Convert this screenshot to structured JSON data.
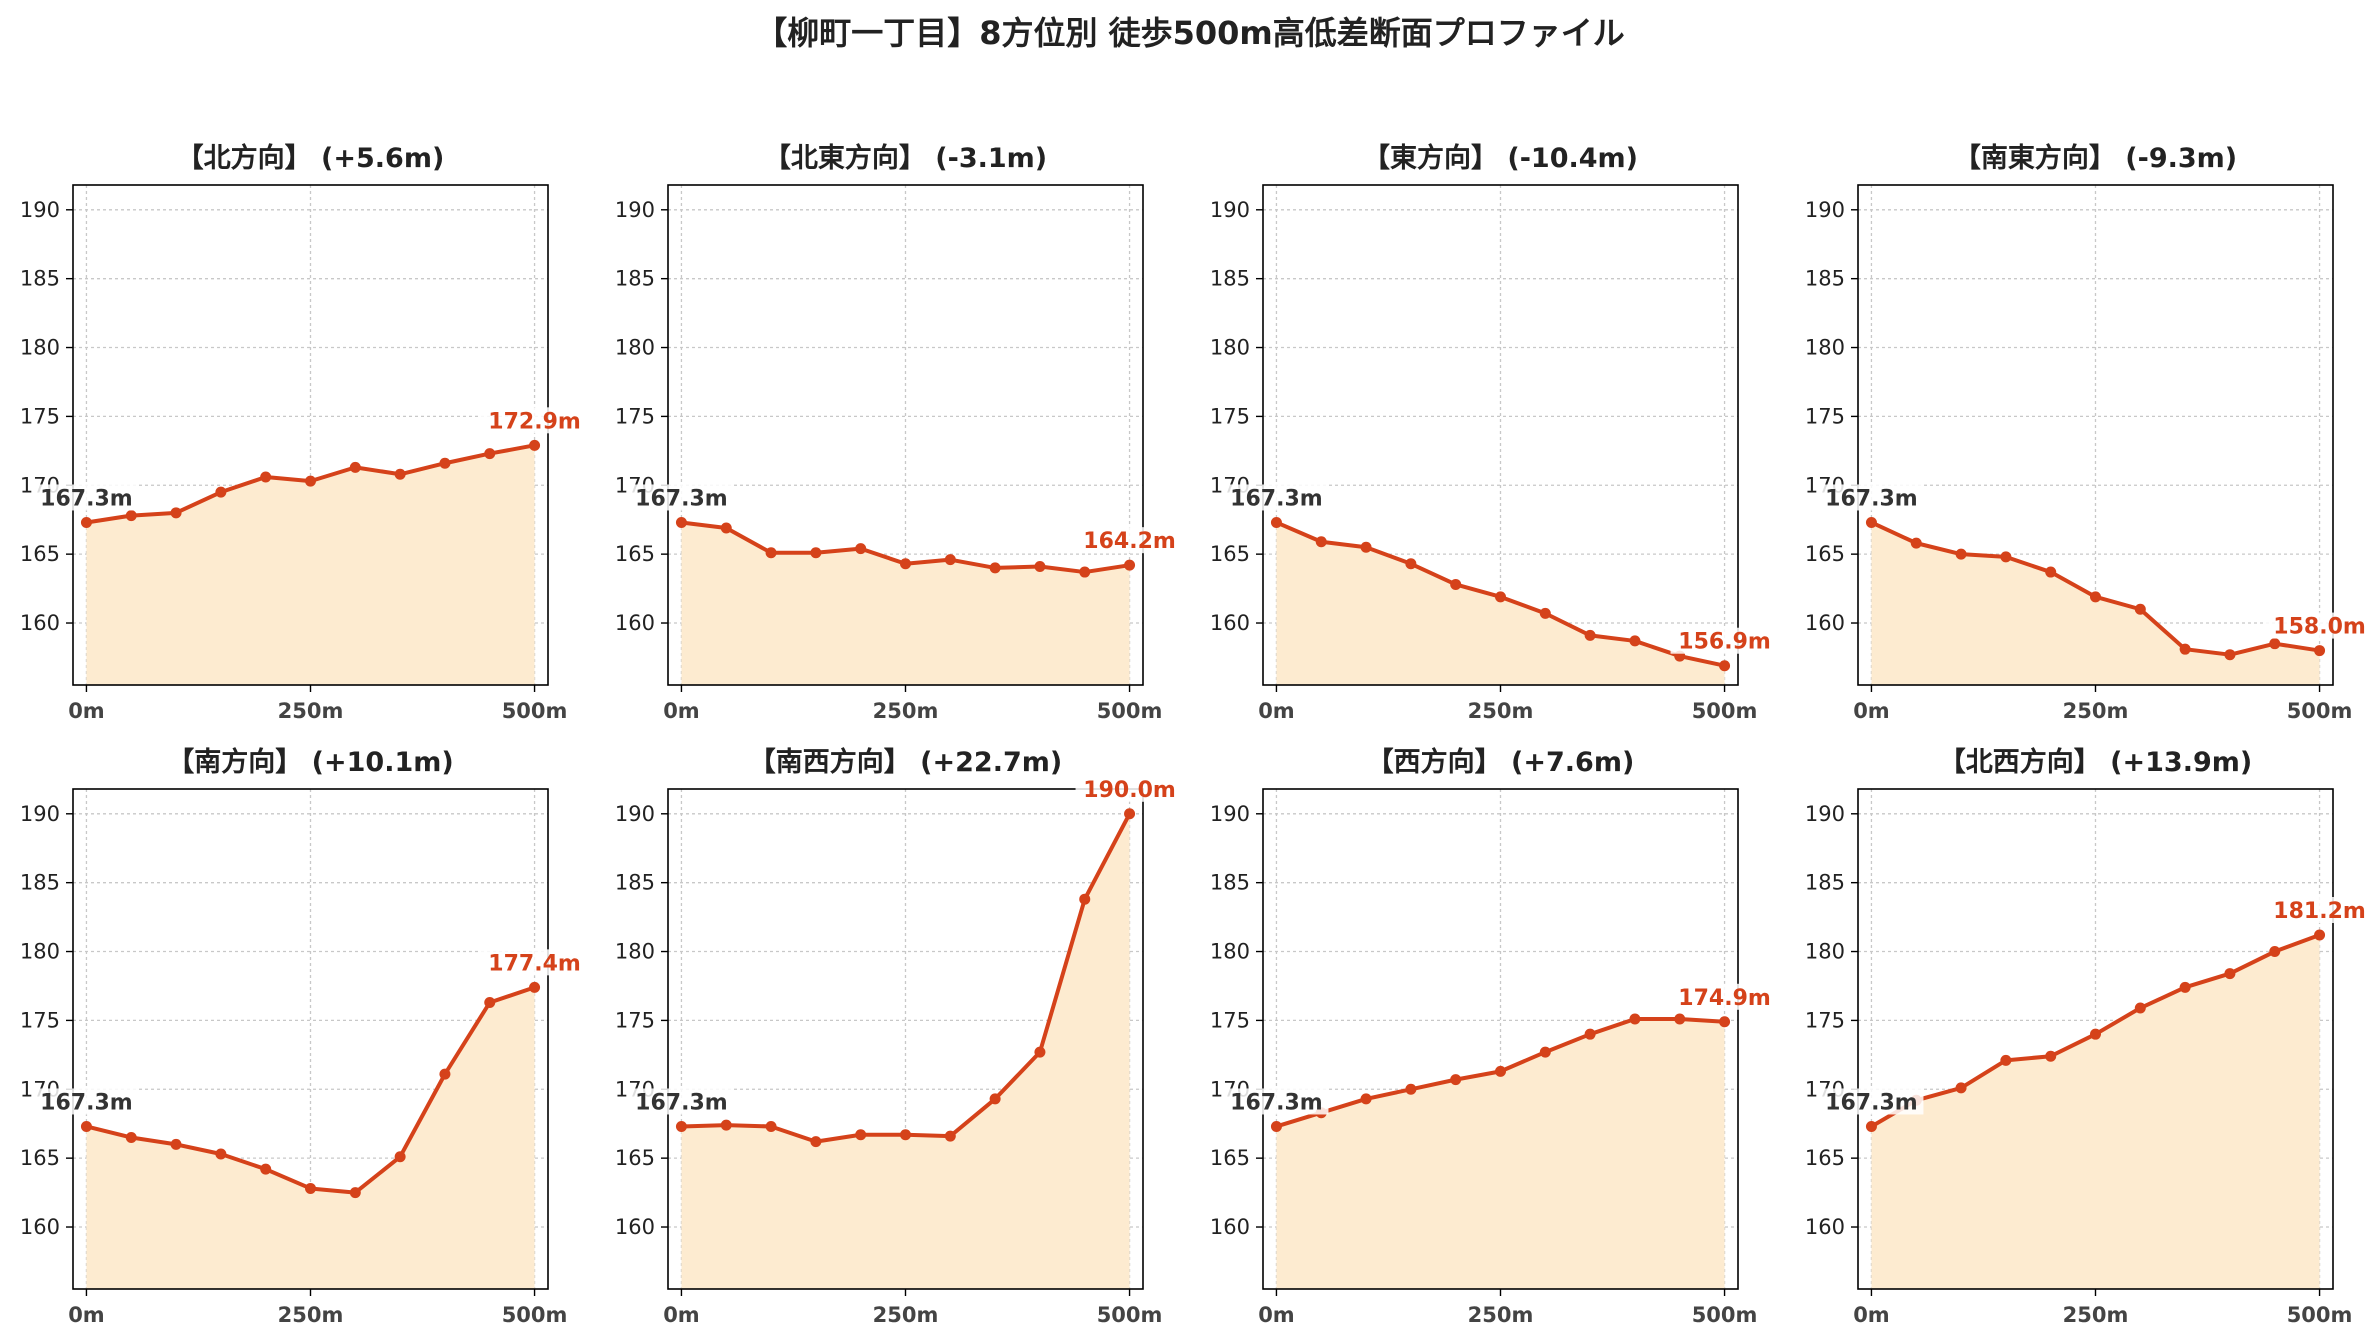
{
  "title": "【柳町一丁目】8方位別 徒歩500m高低差断面プロファイル",
  "colors": {
    "line": "#d5421a",
    "fill": "#fdebd0",
    "start_label": "#333333",
    "end_label": "#d5421a",
    "grid": "#c8c8c8",
    "axis": "#000000"
  },
  "chart_data": [
    {
      "type": "area",
      "title": "【北方向】 (+5.6m)",
      "x": [
        0,
        50,
        100,
        150,
        200,
        250,
        300,
        350,
        400,
        450,
        500
      ],
      "values": [
        167.3,
        167.8,
        168.0,
        169.5,
        170.6,
        170.3,
        171.3,
        170.8,
        171.6,
        172.3,
        172.9
      ],
      "start_label": "167.3m",
      "end_label": "172.9m",
      "xlim": [
        -15,
        515
      ],
      "ylim": [
        155.5,
        191.8
      ],
      "xticks": [
        0,
        250,
        500
      ],
      "xtick_labels": [
        "0m",
        "250m",
        "500m"
      ],
      "yticks": [
        160,
        165,
        170,
        175,
        180,
        185,
        190
      ],
      "ytick_labels": [
        "160",
        "165",
        "170",
        "175",
        "180",
        "185",
        "190"
      ],
      "grid": true
    },
    {
      "type": "area",
      "title": "【北東方向】 (-3.1m)",
      "x": [
        0,
        50,
        100,
        150,
        200,
        250,
        300,
        350,
        400,
        450,
        500
      ],
      "values": [
        167.3,
        166.9,
        165.1,
        165.1,
        165.4,
        164.3,
        164.6,
        164.0,
        164.1,
        163.7,
        164.2
      ],
      "start_label": "167.3m",
      "end_label": "164.2m",
      "xlim": [
        -15,
        515
      ],
      "ylim": [
        155.5,
        191.8
      ],
      "xticks": [
        0,
        250,
        500
      ],
      "xtick_labels": [
        "0m",
        "250m",
        "500m"
      ],
      "yticks": [
        160,
        165,
        170,
        175,
        180,
        185,
        190
      ],
      "ytick_labels": [
        "160",
        "165",
        "170",
        "175",
        "180",
        "185",
        "190"
      ],
      "grid": true
    },
    {
      "type": "area",
      "title": "【東方向】 (-10.4m)",
      "x": [
        0,
        50,
        100,
        150,
        200,
        250,
        300,
        350,
        400,
        450,
        500
      ],
      "values": [
        167.3,
        165.9,
        165.5,
        164.3,
        162.8,
        161.9,
        160.7,
        159.1,
        158.7,
        157.6,
        156.9
      ],
      "start_label": "167.3m",
      "end_label": "156.9m",
      "xlim": [
        -15,
        515
      ],
      "ylim": [
        155.5,
        191.8
      ],
      "xticks": [
        0,
        250,
        500
      ],
      "xtick_labels": [
        "0m",
        "250m",
        "500m"
      ],
      "yticks": [
        160,
        165,
        170,
        175,
        180,
        185,
        190
      ],
      "ytick_labels": [
        "160",
        "165",
        "170",
        "175",
        "180",
        "185",
        "190"
      ],
      "grid": true
    },
    {
      "type": "area",
      "title": "【南東方向】 (-9.3m)",
      "x": [
        0,
        50,
        100,
        150,
        200,
        250,
        300,
        350,
        400,
        450,
        500
      ],
      "values": [
        167.3,
        165.8,
        165.0,
        164.8,
        163.7,
        161.9,
        161.0,
        158.1,
        157.7,
        158.5,
        158.0
      ],
      "start_label": "167.3m",
      "end_label": "158.0m",
      "xlim": [
        -15,
        515
      ],
      "ylim": [
        155.5,
        191.8
      ],
      "xticks": [
        0,
        250,
        500
      ],
      "xtick_labels": [
        "0m",
        "250m",
        "500m"
      ],
      "yticks": [
        160,
        165,
        170,
        175,
        180,
        185,
        190
      ],
      "ytick_labels": [
        "160",
        "165",
        "170",
        "175",
        "180",
        "185",
        "190"
      ],
      "grid": true
    },
    {
      "type": "area",
      "title": "【南方向】 (+10.1m)",
      "x": [
        0,
        50,
        100,
        150,
        200,
        250,
        300,
        350,
        400,
        450,
        500
      ],
      "values": [
        167.3,
        166.5,
        166.0,
        165.3,
        164.2,
        162.8,
        162.5,
        165.1,
        171.1,
        176.3,
        177.4
      ],
      "start_label": "167.3m",
      "end_label": "177.4m",
      "xlim": [
        -15,
        515
      ],
      "ylim": [
        155.5,
        191.8
      ],
      "xticks": [
        0,
        250,
        500
      ],
      "xtick_labels": [
        "0m",
        "250m",
        "500m"
      ],
      "yticks": [
        160,
        165,
        170,
        175,
        180,
        185,
        190
      ],
      "ytick_labels": [
        "160",
        "165",
        "170",
        "175",
        "180",
        "185",
        "190"
      ],
      "grid": true
    },
    {
      "type": "area",
      "title": "【南西方向】 (+22.7m)",
      "x": [
        0,
        50,
        100,
        150,
        200,
        250,
        300,
        350,
        400,
        450,
        500
      ],
      "values": [
        167.3,
        167.4,
        167.3,
        166.2,
        166.7,
        166.7,
        166.6,
        169.3,
        172.7,
        183.8,
        190.0
      ],
      "start_label": "167.3m",
      "end_label": "190.0m",
      "xlim": [
        -15,
        515
      ],
      "ylim": [
        155.5,
        191.8
      ],
      "xticks": [
        0,
        250,
        500
      ],
      "xtick_labels": [
        "0m",
        "250m",
        "500m"
      ],
      "yticks": [
        160,
        165,
        170,
        175,
        180,
        185,
        190
      ],
      "ytick_labels": [
        "160",
        "165",
        "170",
        "175",
        "180",
        "185",
        "190"
      ],
      "grid": true
    },
    {
      "type": "area",
      "title": "【西方向】 (+7.6m)",
      "x": [
        0,
        50,
        100,
        150,
        200,
        250,
        300,
        350,
        400,
        450,
        500
      ],
      "values": [
        167.3,
        168.3,
        169.3,
        170.0,
        170.7,
        171.3,
        172.7,
        174.0,
        175.1,
        175.1,
        174.9
      ],
      "start_label": "167.3m",
      "end_label": "174.9m",
      "xlim": [
        -15,
        515
      ],
      "ylim": [
        155.5,
        191.8
      ],
      "xticks": [
        0,
        250,
        500
      ],
      "xtick_labels": [
        "0m",
        "250m",
        "500m"
      ],
      "yticks": [
        160,
        165,
        170,
        175,
        180,
        185,
        190
      ],
      "ytick_labels": [
        "160",
        "165",
        "170",
        "175",
        "180",
        "185",
        "190"
      ],
      "grid": true
    },
    {
      "type": "area",
      "title": "【北西方向】 (+13.9m)",
      "x": [
        0,
        50,
        100,
        150,
        200,
        250,
        300,
        350,
        400,
        450,
        500
      ],
      "values": [
        167.3,
        169.2,
        170.1,
        172.1,
        172.4,
        174.0,
        175.9,
        177.4,
        178.4,
        180.0,
        181.2
      ],
      "start_label": "167.3m",
      "end_label": "181.2m",
      "xlim": [
        -15,
        515
      ],
      "ylim": [
        155.5,
        191.8
      ],
      "xticks": [
        0,
        250,
        500
      ],
      "xtick_labels": [
        "0m",
        "250m",
        "500m"
      ],
      "yticks": [
        160,
        165,
        170,
        175,
        180,
        185,
        190
      ],
      "ytick_labels": [
        "160",
        "165",
        "170",
        "175",
        "180",
        "185",
        "190"
      ],
      "grid": true
    }
  ]
}
